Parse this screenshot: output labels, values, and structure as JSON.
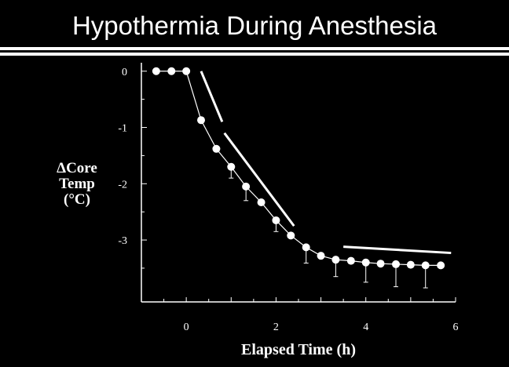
{
  "slide": {
    "title": "Hypothermia During Anesthesia"
  },
  "chart_data": {
    "type": "line",
    "xlabel": "Elapsed Time (h)",
    "ylabel": [
      "ΔCore",
      "Temp",
      "(°C)"
    ],
    "xlim": [
      -1,
      6
    ],
    "ylim": [
      -4.1,
      0.15
    ],
    "x_ticks": [
      0,
      2,
      4,
      6
    ],
    "y_ticks": [
      0,
      -1,
      -2,
      -3
    ],
    "grid": false,
    "series": [
      {
        "points": [
          {
            "x": -0.67,
            "y": 0.0
          },
          {
            "x": -0.33,
            "y": 0.0
          },
          {
            "x": 0.0,
            "y": 0.0
          },
          {
            "x": 0.33,
            "y": -0.87
          },
          {
            "x": 0.67,
            "y": -1.38
          },
          {
            "x": 1.0,
            "y": -1.7,
            "err": 0.2
          },
          {
            "x": 1.33,
            "y": -2.05,
            "err": 0.25
          },
          {
            "x": 1.67,
            "y": -2.33
          },
          {
            "x": 2.0,
            "y": -2.65,
            "err": 0.2
          },
          {
            "x": 2.33,
            "y": -2.92
          },
          {
            "x": 2.67,
            "y": -3.13,
            "err": 0.28
          },
          {
            "x": 3.0,
            "y": -3.28
          },
          {
            "x": 3.33,
            "y": -3.35,
            "err": 0.3
          },
          {
            "x": 3.67,
            "y": -3.37
          },
          {
            "x": 4.0,
            "y": -3.4,
            "err": 0.35
          },
          {
            "x": 4.33,
            "y": -3.42
          },
          {
            "x": 4.67,
            "y": -3.43,
            "err": 0.4
          },
          {
            "x": 5.0,
            "y": -3.44
          },
          {
            "x": 5.33,
            "y": -3.45,
            "err": 0.4
          },
          {
            "x": 5.67,
            "y": -3.45
          }
        ]
      }
    ],
    "trend_lines": [
      {
        "x1": 0.33,
        "y1": 0.0,
        "x2": 0.8,
        "y2": -0.9
      },
      {
        "x1": 0.85,
        "y1": -1.1,
        "x2": 2.4,
        "y2": -2.75
      },
      {
        "x1": 3.5,
        "y1": -3.12,
        "x2": 5.9,
        "y2": -3.23
      }
    ]
  }
}
